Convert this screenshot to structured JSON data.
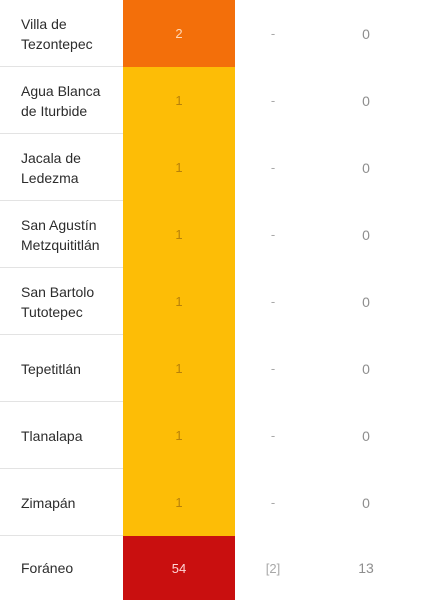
{
  "rows": [
    {
      "name": "Villa de\nTezontepec",
      "value": "2",
      "fill": "#f36f0a",
      "text_color": "#ffd9b8",
      "col3": "-",
      "col4": "0"
    },
    {
      "name": "Agua Blanca\nde Iturbide",
      "value": "1",
      "fill": "#fdbd06",
      "text_color": "#b8820a",
      "col3": "-",
      "col4": "0"
    },
    {
      "name": "Jacala de\nLedezma",
      "value": "1",
      "fill": "#fdbd06",
      "text_color": "#b8820a",
      "col3": "-",
      "col4": "0"
    },
    {
      "name": "San Agustín\nMetzquititlán",
      "value": "1",
      "fill": "#fdbd06",
      "text_color": "#b8820a",
      "col3": "-",
      "col4": "0"
    },
    {
      "name": "San Bartolo\nTutotepec",
      "value": "1",
      "fill": "#fdbd06",
      "text_color": "#b8820a",
      "col3": "-",
      "col4": "0"
    },
    {
      "name": "Tepetitlán",
      "value": "1",
      "fill": "#fdbd06",
      "text_color": "#b8820a",
      "col3": "-",
      "col4": "0"
    },
    {
      "name": "Tlanalapa",
      "value": "1",
      "fill": "#fdbd06",
      "text_color": "#b8820a",
      "col3": "-",
      "col4": "0"
    },
    {
      "name": "Zimapán",
      "value": "1",
      "fill": "#fdbd06",
      "text_color": "#b8820a",
      "col3": "-",
      "col4": "0"
    },
    {
      "name": "Foráneo",
      "value": "54",
      "fill": "#c90f0f",
      "text_color": "#ffd6d6",
      "col3": "[2]",
      "col4": "13"
    }
  ]
}
